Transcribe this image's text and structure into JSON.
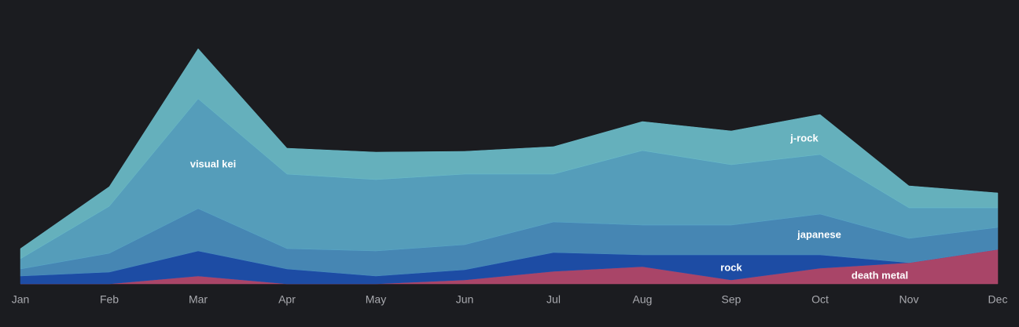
{
  "chart_data": {
    "type": "stacked-area",
    "categories": [
      "Jan",
      "Feb",
      "Mar",
      "Apr",
      "May",
      "Jun",
      "Jul",
      "Aug",
      "Sep",
      "Oct",
      "Nov",
      "Dec"
    ],
    "ylim": [
      0,
      310
    ],
    "series": [
      {
        "name": "death metal",
        "color": "#b5496f",
        "values": [
          0,
          0,
          10,
          0,
          0,
          5,
          16,
          22,
          5,
          20,
          27,
          44
        ]
      },
      {
        "name": "rock",
        "color": "#1d50b0",
        "values": [
          10,
          15,
          32,
          19,
          10,
          13,
          24,
          15,
          32,
          17,
          0,
          0
        ]
      },
      {
        "name": "japanese",
        "color": "#4a8fc0",
        "values": [
          9,
          24,
          54,
          26,
          32,
          32,
          39,
          38,
          38,
          52,
          31,
          28
        ]
      },
      {
        "name": "visual kei",
        "color": "#5aa8c8",
        "values": [
          13,
          60,
          140,
          95,
          91,
          90,
          61,
          95,
          77,
          76,
          39,
          25
        ]
      },
      {
        "name": "j-rock",
        "color": "#6bbdca",
        "values": [
          13,
          25,
          64,
          33,
          35,
          29,
          35,
          37,
          43,
          51,
          28,
          19
        ]
      }
    ]
  }
}
